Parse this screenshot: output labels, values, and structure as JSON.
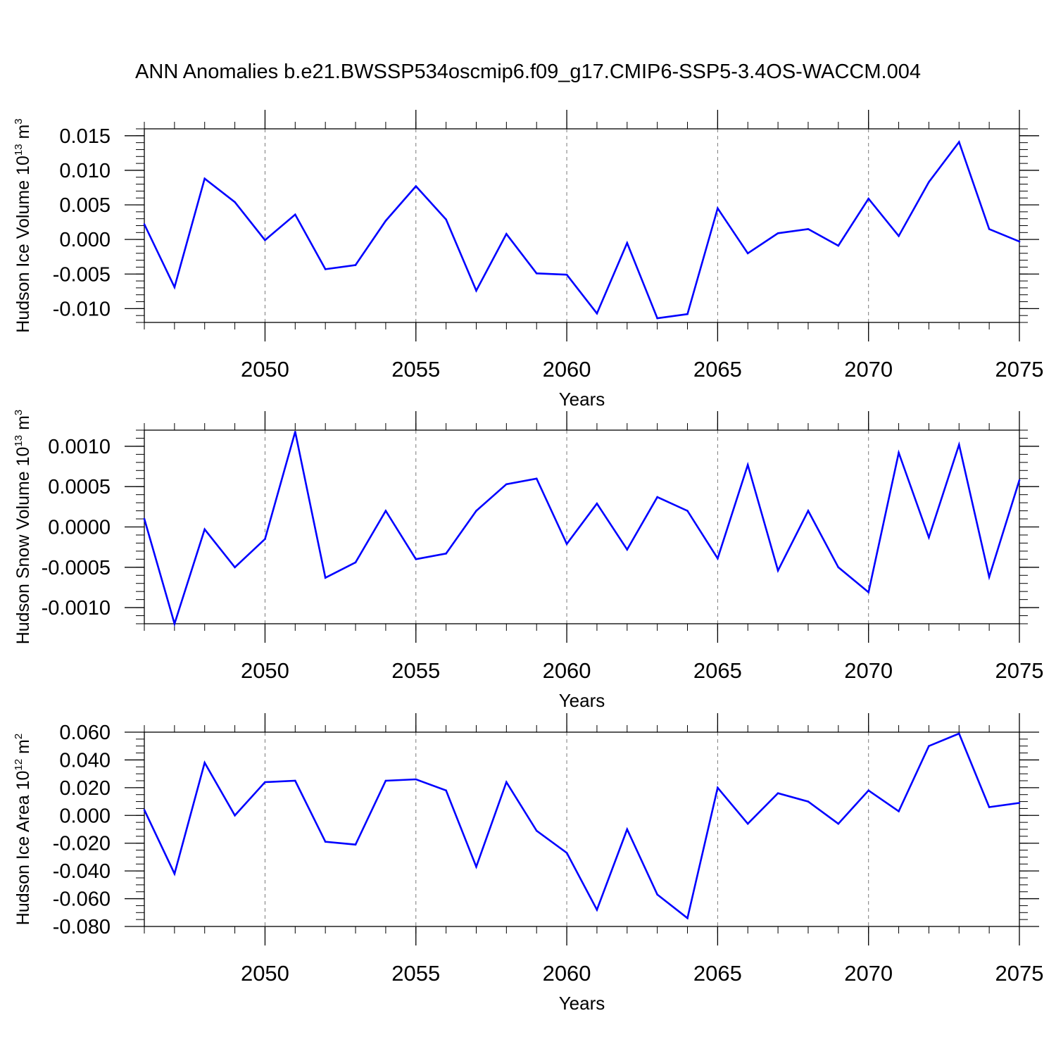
{
  "title": "ANN Anomalies b.e21.BWSSP534oscmip6.f09_g17.CMIP6-SSP5-3.4OS-WACCM.004",
  "chart_data": [
    {
      "type": "line",
      "xlabel": "Years",
      "ylabel": {
        "text": "Hudson Ice Volume 10",
        "exp": "13",
        "unit": "m",
        "unit_exp": "3"
      },
      "xlim": [
        2046,
        2075
      ],
      "ylim": [
        -0.012,
        0.016
      ],
      "xticks": [
        2050,
        2055,
        2060,
        2065,
        2070,
        2075
      ],
      "yticks": [
        -0.01,
        -0.005,
        0.0,
        0.005,
        0.01,
        0.015
      ],
      "ytick_labels": [
        "-0.010",
        "-0.005",
        "0.000",
        "0.005",
        "0.010",
        "0.015"
      ],
      "yminor": 0.001,
      "color": "#0000ff",
      "x": [
        2046,
        2047,
        2048,
        2049,
        2050,
        2051,
        2052,
        2053,
        2054,
        2055,
        2056,
        2057,
        2058,
        2059,
        2060,
        2061,
        2062,
        2063,
        2064,
        2065,
        2066,
        2067,
        2068,
        2069,
        2070,
        2071,
        2072,
        2073,
        2074,
        2075
      ],
      "values": [
        0.0022,
        -0.0069,
        0.0088,
        0.0054,
        -0.0001,
        0.0036,
        -0.0043,
        -0.0037,
        0.0027,
        0.0077,
        0.0029,
        -0.0074,
        0.0008,
        -0.0049,
        -0.0051,
        -0.0107,
        -0.0005,
        -0.0114,
        -0.0108,
        0.0045,
        -0.002,
        0.0009,
        0.0015,
        -0.0009,
        0.0059,
        0.0005,
        0.0083,
        0.0141,
        0.0015,
        -0.0003
      ]
    },
    {
      "type": "line",
      "xlabel": "Years",
      "ylabel": {
        "text": "Hudson Snow Volume 10",
        "exp": "13",
        "unit": "m",
        "unit_exp": "3"
      },
      "xlim": [
        2046,
        2075
      ],
      "ylim": [
        -0.0012,
        0.0012
      ],
      "xticks": [
        2050,
        2055,
        2060,
        2065,
        2070,
        2075
      ],
      "yticks": [
        -0.001,
        -0.0005,
        0.0,
        0.0005,
        0.001
      ],
      "ytick_labels": [
        "-0.0010",
        "-0.0005",
        "0.0000",
        "0.0005",
        "0.0010"
      ],
      "yminor": 0.0001,
      "color": "#0000ff",
      "x": [
        2046,
        2047,
        2048,
        2049,
        2050,
        2051,
        2052,
        2053,
        2054,
        2055,
        2056,
        2057,
        2058,
        2059,
        2060,
        2061,
        2062,
        2063,
        2064,
        2065,
        2066,
        2067,
        2068,
        2069,
        2070,
        2071,
        2072,
        2073,
        2074,
        2075
      ],
      "values": [
        0.0001,
        -0.0012,
        -3e-05,
        -0.0005,
        -0.00015,
        0.00118,
        -0.00063,
        -0.00044,
        0.0002,
        -0.0004,
        -0.00033,
        0.0002,
        0.00053,
        0.0006,
        -0.00021,
        0.00029,
        -0.00028,
        0.00037,
        0.0002,
        -0.00039,
        0.00077,
        -0.00054,
        0.0002,
        -0.0005,
        -0.00081,
        0.00092,
        -0.00013,
        0.00102,
        -0.00062,
        0.00058
      ]
    },
    {
      "type": "line",
      "xlabel": "Years",
      "ylabel": {
        "text": "Hudson Ice Area 10",
        "exp": "12",
        "unit": "m",
        "unit_exp": "2"
      },
      "xlim": [
        2046,
        2075
      ],
      "ylim": [
        -0.08,
        0.06
      ],
      "xticks": [
        2050,
        2055,
        2060,
        2065,
        2070,
        2075
      ],
      "yticks": [
        -0.08,
        -0.06,
        -0.04,
        -0.02,
        0.0,
        0.02,
        0.04,
        0.06
      ],
      "ytick_labels": [
        "-0.080",
        "-0.060",
        "-0.040",
        "-0.020",
        "0.000",
        "0.020",
        "0.040",
        "0.060"
      ],
      "yminor": 0.005,
      "color": "#0000ff",
      "x": [
        2046,
        2047,
        2048,
        2049,
        2050,
        2051,
        2052,
        2053,
        2054,
        2055,
        2056,
        2057,
        2058,
        2059,
        2060,
        2061,
        2062,
        2063,
        2064,
        2065,
        2066,
        2067,
        2068,
        2069,
        2070,
        2071,
        2072,
        2073,
        2074,
        2075
      ],
      "values": [
        0.004,
        -0.042,
        0.038,
        0.0,
        0.024,
        0.025,
        -0.019,
        -0.021,
        0.025,
        0.026,
        0.018,
        -0.037,
        0.024,
        -0.011,
        -0.027,
        -0.068,
        -0.01,
        -0.057,
        -0.074,
        0.02,
        -0.006,
        0.016,
        0.01,
        -0.006,
        0.018,
        0.003,
        0.05,
        0.059,
        0.006,
        0.009
      ]
    }
  ]
}
